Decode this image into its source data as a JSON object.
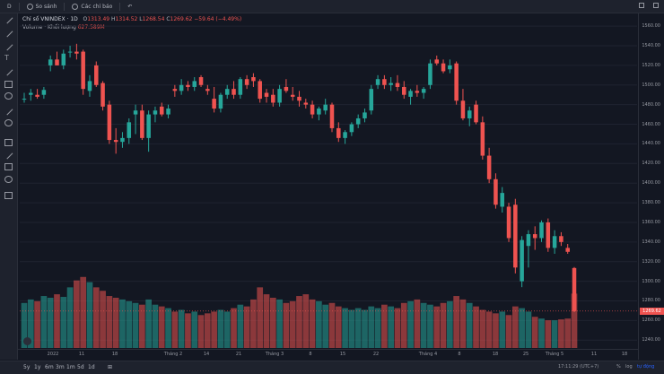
{
  "toolbar": {
    "symbol_search": "D",
    "compare_label": "So sánh",
    "indicators_label": "Các chỉ báo",
    "undo_label": "↶"
  },
  "legend": {
    "symbol": "Chỉ số VNINDEX · 1D",
    "open_label": "O",
    "open": "1313.49",
    "high_label": "H",
    "high": "1314.52",
    "low_label": "L",
    "low": "1268.54",
    "close_label": "C",
    "close": "1269.62",
    "change": "−59.64 (−4.49%)",
    "volume_label": "Volume · Khối lượng",
    "volume_value": "627.589M"
  },
  "price_axis": {
    "ticks": [
      "1560.00",
      "1540.00",
      "1520.00",
      "1500.00",
      "1480.00",
      "1460.00",
      "1440.00",
      "1420.00",
      "1400.00",
      "1380.00",
      "1360.00",
      "1340.00",
      "1320.00",
      "1300.00",
      "1280.00",
      "1260.00",
      "1240.00"
    ],
    "current_price": "1269.62"
  },
  "time_axis": {
    "labels": [
      "2022",
      "11",
      "18",
      "Tháng 2",
      "14",
      "21",
      "Tháng 3",
      "8",
      "15",
      "22",
      "Tháng 4",
      "8",
      "18",
      "25",
      "Tháng 5",
      "11",
      "18"
    ]
  },
  "bottom_bar": {
    "periods": [
      "5y",
      "1y",
      "6m",
      "3m",
      "1m",
      "5d",
      "1d"
    ],
    "range_icon": "⊞",
    "time": "17:11:29 (UTC+7)",
    "percent": "%",
    "log": "log",
    "auto": "tự động"
  },
  "colors": {
    "up": "#26a69a",
    "down": "#ef5350",
    "bg": "#131722"
  },
  "chart_data": {
    "type": "candlestick",
    "title": "Chỉ số VNINDEX · 1D",
    "ylim": [
      1232,
      1572
    ],
    "volume_ylim": [
      0,
      1000
    ],
    "candles": [
      {
        "o": 1486,
        "h": 1492,
        "l": 1482,
        "c": 1486,
        "v": 520
      },
      {
        "o": 1490,
        "h": 1496,
        "l": 1484,
        "c": 1492,
        "v": 560
      },
      {
        "o": 1490,
        "h": 1496,
        "l": 1486,
        "c": 1488,
        "v": 540
      },
      {
        "o": 1490,
        "h": 1498,
        "l": 1486,
        "c": 1495,
        "v": 600
      },
      {
        "o": 1520,
        "h": 1530,
        "l": 1514,
        "c": 1526,
        "v": 580
      },
      {
        "o": 1526,
        "h": 1534,
        "l": 1520,
        "c": 1520,
        "v": 620
      },
      {
        "o": 1520,
        "h": 1536,
        "l": 1516,
        "c": 1532,
        "v": 590
      },
      {
        "o": 1534,
        "h": 1540,
        "l": 1528,
        "c": 1534,
        "v": 700
      },
      {
        "o": 1534,
        "h": 1542,
        "l": 1526,
        "c": 1532,
        "v": 780
      },
      {
        "o": 1534,
        "h": 1536,
        "l": 1490,
        "c": 1496,
        "v": 820
      },
      {
        "o": 1494,
        "h": 1510,
        "l": 1488,
        "c": 1504,
        "v": 760
      },
      {
        "o": 1520,
        "h": 1524,
        "l": 1498,
        "c": 1500,
        "v": 700
      },
      {
        "o": 1502,
        "h": 1504,
        "l": 1474,
        "c": 1478,
        "v": 660
      },
      {
        "o": 1480,
        "h": 1484,
        "l": 1440,
        "c": 1444,
        "v": 600
      },
      {
        "o": 1444,
        "h": 1456,
        "l": 1430,
        "c": 1442,
        "v": 580
      },
      {
        "o": 1442,
        "h": 1452,
        "l": 1436,
        "c": 1446,
        "v": 560
      },
      {
        "o": 1446,
        "h": 1466,
        "l": 1440,
        "c": 1462,
        "v": 540
      },
      {
        "o": 1470,
        "h": 1480,
        "l": 1450,
        "c": 1474,
        "v": 520
      },
      {
        "o": 1474,
        "h": 1480,
        "l": 1444,
        "c": 1446,
        "v": 500
      },
      {
        "o": 1446,
        "h": 1474,
        "l": 1432,
        "c": 1470,
        "v": 560
      },
      {
        "o": 1470,
        "h": 1478,
        "l": 1462,
        "c": 1474,
        "v": 500
      },
      {
        "o": 1478,
        "h": 1482,
        "l": 1468,
        "c": 1470,
        "v": 480
      },
      {
        "o": 1470,
        "h": 1480,
        "l": 1466,
        "c": 1476,
        "v": 460
      },
      {
        "o": 1496,
        "h": 1500,
        "l": 1488,
        "c": 1494,
        "v": 420
      },
      {
        "o": 1494,
        "h": 1506,
        "l": 1490,
        "c": 1500,
        "v": 440
      },
      {
        "o": 1500,
        "h": 1504,
        "l": 1494,
        "c": 1498,
        "v": 400
      },
      {
        "o": 1498,
        "h": 1508,
        "l": 1494,
        "c": 1504,
        "v": 420
      },
      {
        "o": 1508,
        "h": 1510,
        "l": 1498,
        "c": 1500,
        "v": 380
      },
      {
        "o": 1496,
        "h": 1500,
        "l": 1490,
        "c": 1494,
        "v": 400
      },
      {
        "o": 1486,
        "h": 1498,
        "l": 1472,
        "c": 1476,
        "v": 420
      },
      {
        "o": 1476,
        "h": 1492,
        "l": 1472,
        "c": 1490,
        "v": 440
      },
      {
        "o": 1490,
        "h": 1500,
        "l": 1486,
        "c": 1496,
        "v": 420
      },
      {
        "o": 1496,
        "h": 1504,
        "l": 1486,
        "c": 1490,
        "v": 460
      },
      {
        "o": 1490,
        "h": 1508,
        "l": 1486,
        "c": 1506,
        "v": 500
      },
      {
        "o": 1506,
        "h": 1510,
        "l": 1496,
        "c": 1500,
        "v": 480
      },
      {
        "o": 1508,
        "h": 1512,
        "l": 1498,
        "c": 1504,
        "v": 560
      },
      {
        "o": 1504,
        "h": 1506,
        "l": 1482,
        "c": 1486,
        "v": 700
      },
      {
        "o": 1492,
        "h": 1496,
        "l": 1482,
        "c": 1488,
        "v": 620
      },
      {
        "o": 1490,
        "h": 1496,
        "l": 1478,
        "c": 1482,
        "v": 580
      },
      {
        "o": 1482,
        "h": 1500,
        "l": 1478,
        "c": 1496,
        "v": 560
      },
      {
        "o": 1498,
        "h": 1506,
        "l": 1492,
        "c": 1494,
        "v": 520
      },
      {
        "o": 1490,
        "h": 1498,
        "l": 1484,
        "c": 1488,
        "v": 540
      },
      {
        "o": 1488,
        "h": 1494,
        "l": 1478,
        "c": 1484,
        "v": 600
      },
      {
        "o": 1482,
        "h": 1486,
        "l": 1476,
        "c": 1480,
        "v": 620
      },
      {
        "o": 1480,
        "h": 1484,
        "l": 1466,
        "c": 1470,
        "v": 560
      },
      {
        "o": 1470,
        "h": 1478,
        "l": 1464,
        "c": 1476,
        "v": 540
      },
      {
        "o": 1474,
        "h": 1486,
        "l": 1470,
        "c": 1480,
        "v": 500
      },
      {
        "o": 1480,
        "h": 1482,
        "l": 1452,
        "c": 1456,
        "v": 520
      },
      {
        "o": 1456,
        "h": 1462,
        "l": 1442,
        "c": 1446,
        "v": 480
      },
      {
        "o": 1446,
        "h": 1454,
        "l": 1440,
        "c": 1452,
        "v": 460
      },
      {
        "o": 1452,
        "h": 1462,
        "l": 1448,
        "c": 1460,
        "v": 440
      },
      {
        "o": 1460,
        "h": 1470,
        "l": 1456,
        "c": 1466,
        "v": 460
      },
      {
        "o": 1466,
        "h": 1476,
        "l": 1462,
        "c": 1472,
        "v": 440
      },
      {
        "o": 1474,
        "h": 1500,
        "l": 1470,
        "c": 1496,
        "v": 480
      },
      {
        "o": 1500,
        "h": 1510,
        "l": 1496,
        "c": 1506,
        "v": 460
      },
      {
        "o": 1506,
        "h": 1510,
        "l": 1496,
        "c": 1500,
        "v": 500
      },
      {
        "o": 1500,
        "h": 1508,
        "l": 1494,
        "c": 1502,
        "v": 480
      },
      {
        "o": 1502,
        "h": 1510,
        "l": 1494,
        "c": 1498,
        "v": 460
      },
      {
        "o": 1498,
        "h": 1504,
        "l": 1486,
        "c": 1490,
        "v": 520
      },
      {
        "o": 1488,
        "h": 1496,
        "l": 1480,
        "c": 1494,
        "v": 540
      },
      {
        "o": 1494,
        "h": 1500,
        "l": 1488,
        "c": 1492,
        "v": 560
      },
      {
        "o": 1492,
        "h": 1498,
        "l": 1486,
        "c": 1496,
        "v": 520
      },
      {
        "o": 1500,
        "h": 1526,
        "l": 1496,
        "c": 1522,
        "v": 500
      },
      {
        "o": 1526,
        "h": 1530,
        "l": 1520,
        "c": 1522,
        "v": 480
      },
      {
        "o": 1522,
        "h": 1526,
        "l": 1512,
        "c": 1514,
        "v": 520
      },
      {
        "o": 1516,
        "h": 1526,
        "l": 1512,
        "c": 1520,
        "v": 540
      },
      {
        "o": 1522,
        "h": 1524,
        "l": 1480,
        "c": 1484,
        "v": 600
      },
      {
        "o": 1484,
        "h": 1496,
        "l": 1464,
        "c": 1466,
        "v": 560
      },
      {
        "o": 1466,
        "h": 1478,
        "l": 1458,
        "c": 1474,
        "v": 520
      },
      {
        "o": 1480,
        "h": 1484,
        "l": 1460,
        "c": 1462,
        "v": 480
      },
      {
        "o": 1462,
        "h": 1468,
        "l": 1424,
        "c": 1428,
        "v": 440
      },
      {
        "o": 1428,
        "h": 1436,
        "l": 1400,
        "c": 1404,
        "v": 420
      },
      {
        "o": 1404,
        "h": 1410,
        "l": 1374,
        "c": 1378,
        "v": 400
      },
      {
        "o": 1376,
        "h": 1396,
        "l": 1370,
        "c": 1390,
        "v": 420
      },
      {
        "o": 1376,
        "h": 1380,
        "l": 1340,
        "c": 1344,
        "v": 380
      },
      {
        "o": 1378,
        "h": 1384,
        "l": 1308,
        "c": 1314,
        "v": 480
      },
      {
        "o": 1300,
        "h": 1346,
        "l": 1294,
        "c": 1342,
        "v": 460
      },
      {
        "o": 1336,
        "h": 1352,
        "l": 1314,
        "c": 1348,
        "v": 420
      },
      {
        "o": 1348,
        "h": 1356,
        "l": 1332,
        "c": 1344,
        "v": 360
      },
      {
        "o": 1344,
        "h": 1362,
        "l": 1340,
        "c": 1360,
        "v": 340
      },
      {
        "o": 1360,
        "h": 1364,
        "l": 1330,
        "c": 1334,
        "v": 320
      },
      {
        "o": 1334,
        "h": 1352,
        "l": 1328,
        "c": 1346,
        "v": 320
      },
      {
        "o": 1346,
        "h": 1350,
        "l": 1336,
        "c": 1340,
        "v": 330
      },
      {
        "o": 1334,
        "h": 1338,
        "l": 1328,
        "c": 1330,
        "v": 340
      },
      {
        "o": 1313.49,
        "h": 1314.52,
        "l": 1268.54,
        "c": 1269.62,
        "v": 627.589
      }
    ]
  }
}
